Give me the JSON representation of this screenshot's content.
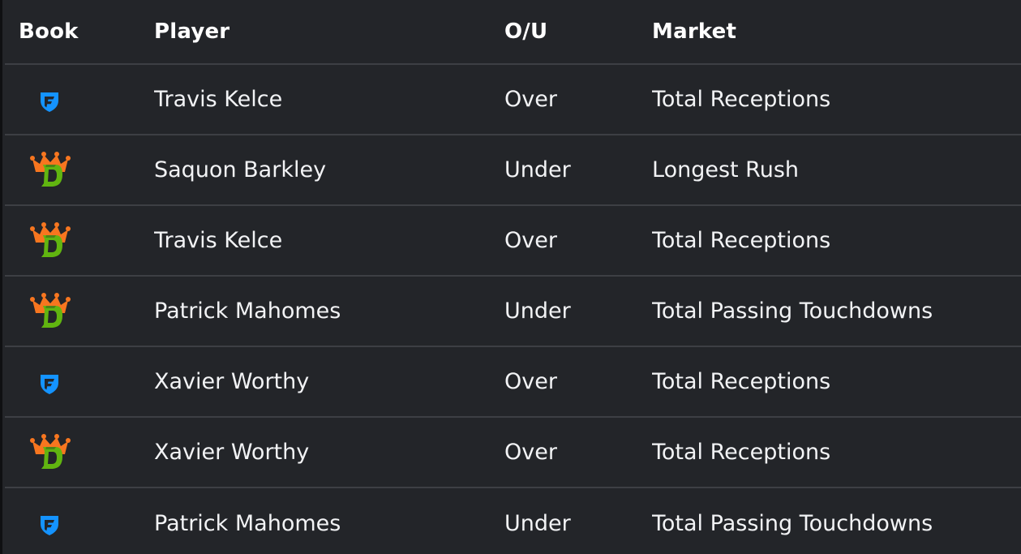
{
  "table": {
    "headers": {
      "book": "Book",
      "player": "Player",
      "ou": "O/U",
      "market": "Market"
    },
    "rows": [
      {
        "book_icon": "fanduel-icon",
        "player": "Travis Kelce",
        "ou": "Over",
        "market": "Total Receptions"
      },
      {
        "book_icon": "draftkings-icon",
        "player": "Saquon Barkley",
        "ou": "Under",
        "market": "Longest Rush"
      },
      {
        "book_icon": "draftkings-icon",
        "player": "Travis Kelce",
        "ou": "Over",
        "market": "Total Receptions"
      },
      {
        "book_icon": "draftkings-icon",
        "player": "Patrick Mahomes",
        "ou": "Under",
        "market": "Total Passing Touchdowns"
      },
      {
        "book_icon": "fanduel-icon",
        "player": "Xavier Worthy",
        "ou": "Over",
        "market": "Total Receptions"
      },
      {
        "book_icon": "draftkings-icon",
        "player": "Xavier Worthy",
        "ou": "Over",
        "market": "Total Receptions"
      },
      {
        "book_icon": "fanduel-icon",
        "player": "Patrick Mahomes",
        "ou": "Under",
        "market": "Total Passing Touchdowns"
      }
    ]
  },
  "colors": {
    "background": "#232529",
    "divider": "#3d3f44",
    "fanduel_blue": "#1493ff",
    "draftkings_orange": "#f7761f",
    "draftkings_green": "#61b510"
  }
}
